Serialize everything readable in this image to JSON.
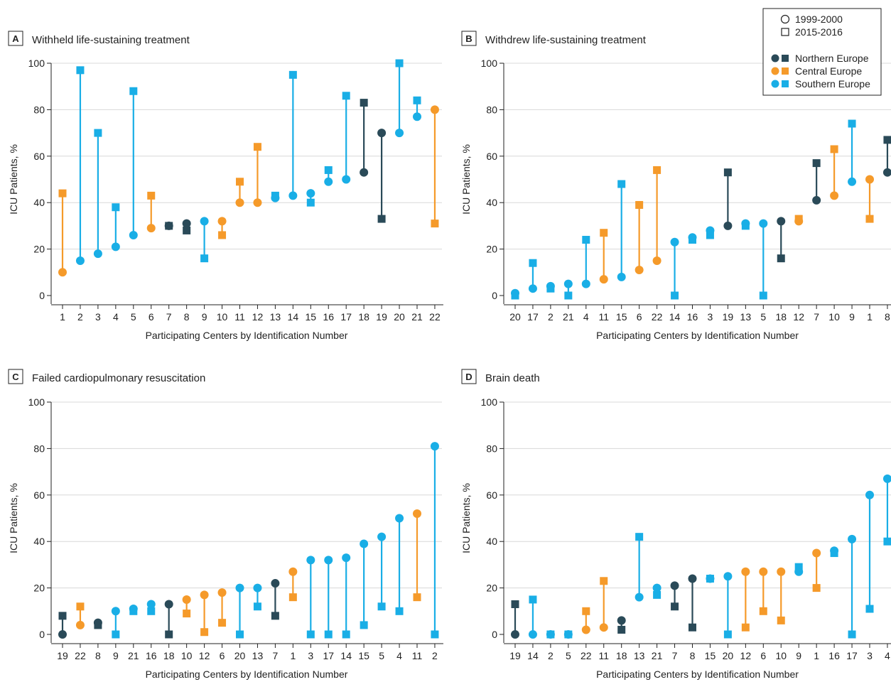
{
  "colors": {
    "northern": "#2a4a58",
    "central": "#f59a2a",
    "southern": "#19aee6",
    "grid": "#d8d8d8",
    "axis": "#222222"
  },
  "legend": {
    "period_1999": "1999-2000",
    "period_2015": "2015-2016",
    "northern": "Northern Europe",
    "central": "Central Europe",
    "southern": "Southern Europe"
  },
  "chart_data": [
    {
      "type": "scatter",
      "panel": "A",
      "title": "Withheld life-sustaining treatment",
      "xlabel": "Participating Centers by Identification Number",
      "ylabel": "ICU Patients, %",
      "ylim": [
        0,
        100
      ],
      "yticks": [
        0,
        20,
        40,
        60,
        80,
        100
      ],
      "grid": true,
      "series": [
        {
          "name": "1999-2000",
          "marker": "circle"
        },
        {
          "name": "2015-2016",
          "marker": "square"
        }
      ],
      "points": [
        {
          "center": "1",
          "region": "central",
          "y1999": 10,
          "y2015": 44
        },
        {
          "center": "2",
          "region": "southern",
          "y1999": 15,
          "y2015": 97
        },
        {
          "center": "3",
          "region": "southern",
          "y1999": 18,
          "y2015": 70
        },
        {
          "center": "4",
          "region": "southern",
          "y1999": 21,
          "y2015": 38
        },
        {
          "center": "5",
          "region": "southern",
          "y1999": 26,
          "y2015": 88
        },
        {
          "center": "6",
          "region": "central",
          "y1999": 29,
          "y2015": 43
        },
        {
          "center": "7",
          "region": "northern",
          "y1999": 30,
          "y2015": 30
        },
        {
          "center": "8",
          "region": "northern",
          "y1999": 31,
          "y2015": 28
        },
        {
          "center": "9",
          "region": "southern",
          "y1999": 32,
          "y2015": 16
        },
        {
          "center": "10",
          "region": "central",
          "y1999": 32,
          "y2015": 26
        },
        {
          "center": "11",
          "region": "central",
          "y1999": 40,
          "y2015": 49
        },
        {
          "center": "12",
          "region": "central",
          "y1999": 40,
          "y2015": 64
        },
        {
          "center": "13",
          "region": "southern",
          "y1999": 42,
          "y2015": 43
        },
        {
          "center": "14",
          "region": "southern",
          "y1999": 43,
          "y2015": 95
        },
        {
          "center": "15",
          "region": "southern",
          "y1999": 44,
          "y2015": 40
        },
        {
          "center": "16",
          "region": "southern",
          "y1999": 49,
          "y2015": 54
        },
        {
          "center": "17",
          "region": "southern",
          "y1999": 50,
          "y2015": 86
        },
        {
          "center": "18",
          "region": "northern",
          "y1999": 53,
          "y2015": 83
        },
        {
          "center": "19",
          "region": "northern",
          "y1999": 70,
          "y2015": 33
        },
        {
          "center": "20",
          "region": "southern",
          "y1999": 70,
          "y2015": 100
        },
        {
          "center": "21",
          "region": "southern",
          "y1999": 77,
          "y2015": 84
        },
        {
          "center": "22",
          "region": "central",
          "y1999": 80,
          "y2015": 31
        }
      ]
    },
    {
      "type": "scatter",
      "panel": "B",
      "title": "Withdrew life-sustaining treatment",
      "xlabel": "Participating Centers by Identification Number",
      "ylabel": "ICU Patients, %",
      "ylim": [
        0,
        100
      ],
      "yticks": [
        0,
        20,
        40,
        60,
        80,
        100
      ],
      "grid": true,
      "points": [
        {
          "center": "20",
          "region": "southern",
          "y1999": 1,
          "y2015": 0
        },
        {
          "center": "17",
          "region": "southern",
          "y1999": 3,
          "y2015": 14
        },
        {
          "center": "2",
          "region": "southern",
          "y1999": 4,
          "y2015": 3
        },
        {
          "center": "21",
          "region": "southern",
          "y1999": 5,
          "y2015": 0
        },
        {
          "center": "4",
          "region": "southern",
          "y1999": 5,
          "y2015": 24
        },
        {
          "center": "11",
          "region": "central",
          "y1999": 7,
          "y2015": 27
        },
        {
          "center": "15",
          "region": "southern",
          "y1999": 8,
          "y2015": 48
        },
        {
          "center": "6",
          "region": "central",
          "y1999": 11,
          "y2015": 39
        },
        {
          "center": "22",
          "region": "central",
          "y1999": 15,
          "y2015": 54
        },
        {
          "center": "14",
          "region": "southern",
          "y1999": 23,
          "y2015": 0
        },
        {
          "center": "16",
          "region": "southern",
          "y1999": 25,
          "y2015": 24
        },
        {
          "center": "3",
          "region": "southern",
          "y1999": 28,
          "y2015": 26
        },
        {
          "center": "19",
          "region": "northern",
          "y1999": 30,
          "y2015": 53
        },
        {
          "center": "13",
          "region": "southern",
          "y1999": 31,
          "y2015": 30
        },
        {
          "center": "5",
          "region": "southern",
          "y1999": 31,
          "y2015": 0
        },
        {
          "center": "18",
          "region": "northern",
          "y1999": 32,
          "y2015": 16
        },
        {
          "center": "12",
          "region": "central",
          "y1999": 32,
          "y2015": 33
        },
        {
          "center": "7",
          "region": "northern",
          "y1999": 41,
          "y2015": 57
        },
        {
          "center": "10",
          "region": "central",
          "y1999": 43,
          "y2015": 63
        },
        {
          "center": "9",
          "region": "southern",
          "y1999": 49,
          "y2015": 74
        },
        {
          "center": "1",
          "region": "central",
          "y1999": 50,
          "y2015": 33
        },
        {
          "center": "8",
          "region": "northern",
          "y1999": 53,
          "y2015": 67
        }
      ]
    },
    {
      "type": "scatter",
      "panel": "C",
      "title": "Failed cardiopulmonary resuscitation",
      "xlabel": "Participating Centers by Identification Number",
      "ylabel": "ICU Patients, %",
      "ylim": [
        0,
        100
      ],
      "yticks": [
        0,
        20,
        40,
        60,
        80,
        100
      ],
      "grid": true,
      "points": [
        {
          "center": "19",
          "region": "northern",
          "y1999": 0,
          "y2015": 8
        },
        {
          "center": "22",
          "region": "central",
          "y1999": 4,
          "y2015": 12
        },
        {
          "center": "8",
          "region": "northern",
          "y1999": 5,
          "y2015": 4
        },
        {
          "center": "9",
          "region": "southern",
          "y1999": 10,
          "y2015": 0
        },
        {
          "center": "21",
          "region": "southern",
          "y1999": 11,
          "y2015": 10
        },
        {
          "center": "16",
          "region": "southern",
          "y1999": 13,
          "y2015": 10
        },
        {
          "center": "18",
          "region": "northern",
          "y1999": 13,
          "y2015": 0
        },
        {
          "center": "10",
          "region": "central",
          "y1999": 15,
          "y2015": 9
        },
        {
          "center": "12",
          "region": "central",
          "y1999": 17,
          "y2015": 1
        },
        {
          "center": "6",
          "region": "central",
          "y1999": 18,
          "y2015": 5
        },
        {
          "center": "20",
          "region": "southern",
          "y1999": 20,
          "y2015": 0
        },
        {
          "center": "13",
          "region": "southern",
          "y1999": 20,
          "y2015": 12
        },
        {
          "center": "7",
          "region": "northern",
          "y1999": 22,
          "y2015": 8
        },
        {
          "center": "1",
          "region": "central",
          "y1999": 27,
          "y2015": 16
        },
        {
          "center": "3",
          "region": "southern",
          "y1999": 32,
          "y2015": 0
        },
        {
          "center": "17",
          "region": "southern",
          "y1999": 32,
          "y2015": 0
        },
        {
          "center": "14",
          "region": "southern",
          "y1999": 33,
          "y2015": 0
        },
        {
          "center": "15",
          "region": "southern",
          "y1999": 39,
          "y2015": 4
        },
        {
          "center": "5",
          "region": "southern",
          "y1999": 42,
          "y2015": 12
        },
        {
          "center": "4",
          "region": "southern",
          "y1999": 50,
          "y2015": 10
        },
        {
          "center": "11",
          "region": "central",
          "y1999": 52,
          "y2015": 16
        },
        {
          "center": "2",
          "region": "southern",
          "y1999": 81,
          "y2015": 0
        }
      ]
    },
    {
      "type": "scatter",
      "panel": "D",
      "title": "Brain death",
      "xlabel": "Participating Centers by Identification Number",
      "ylabel": "ICU Patients, %",
      "ylim": [
        0,
        100
      ],
      "yticks": [
        0,
        20,
        40,
        60,
        80,
        100
      ],
      "grid": true,
      "points": [
        {
          "center": "19",
          "region": "northern",
          "y1999": 0,
          "y2015": 13
        },
        {
          "center": "14",
          "region": "southern",
          "y1999": 0,
          "y2015": 15
        },
        {
          "center": "2",
          "region": "southern",
          "y1999": 0,
          "y2015": 0
        },
        {
          "center": "5",
          "region": "southern",
          "y1999": 0,
          "y2015": 0
        },
        {
          "center": "22",
          "region": "central",
          "y1999": 2,
          "y2015": 10
        },
        {
          "center": "11",
          "region": "central",
          "y1999": 3,
          "y2015": 23
        },
        {
          "center": "18",
          "region": "northern",
          "y1999": 6,
          "y2015": 2
        },
        {
          "center": "13",
          "region": "southern",
          "y1999": 16,
          "y2015": 42
        },
        {
          "center": "21",
          "region": "southern",
          "y1999": 20,
          "y2015": 17
        },
        {
          "center": "7",
          "region": "northern",
          "y1999": 21,
          "y2015": 12
        },
        {
          "center": "8",
          "region": "northern",
          "y1999": 24,
          "y2015": 3
        },
        {
          "center": "15",
          "region": "southern",
          "y1999": 24,
          "y2015": 24
        },
        {
          "center": "20",
          "region": "southern",
          "y1999": 25,
          "y2015": 0
        },
        {
          "center": "12",
          "region": "central",
          "y1999": 27,
          "y2015": 3
        },
        {
          "center": "6",
          "region": "central",
          "y1999": 27,
          "y2015": 10
        },
        {
          "center": "10",
          "region": "central",
          "y1999": 27,
          "y2015": 6
        },
        {
          "center": "9",
          "region": "southern",
          "y1999": 27,
          "y2015": 29
        },
        {
          "center": "1",
          "region": "central",
          "y1999": 35,
          "y2015": 20
        },
        {
          "center": "16",
          "region": "southern",
          "y1999": 36,
          "y2015": 35
        },
        {
          "center": "17",
          "region": "southern",
          "y1999": 41,
          "y2015": 0
        },
        {
          "center": "3",
          "region": "southern",
          "y1999": 60,
          "y2015": 11
        },
        {
          "center": "4",
          "region": "southern",
          "y1999": 67,
          "y2015": 40
        }
      ]
    }
  ]
}
